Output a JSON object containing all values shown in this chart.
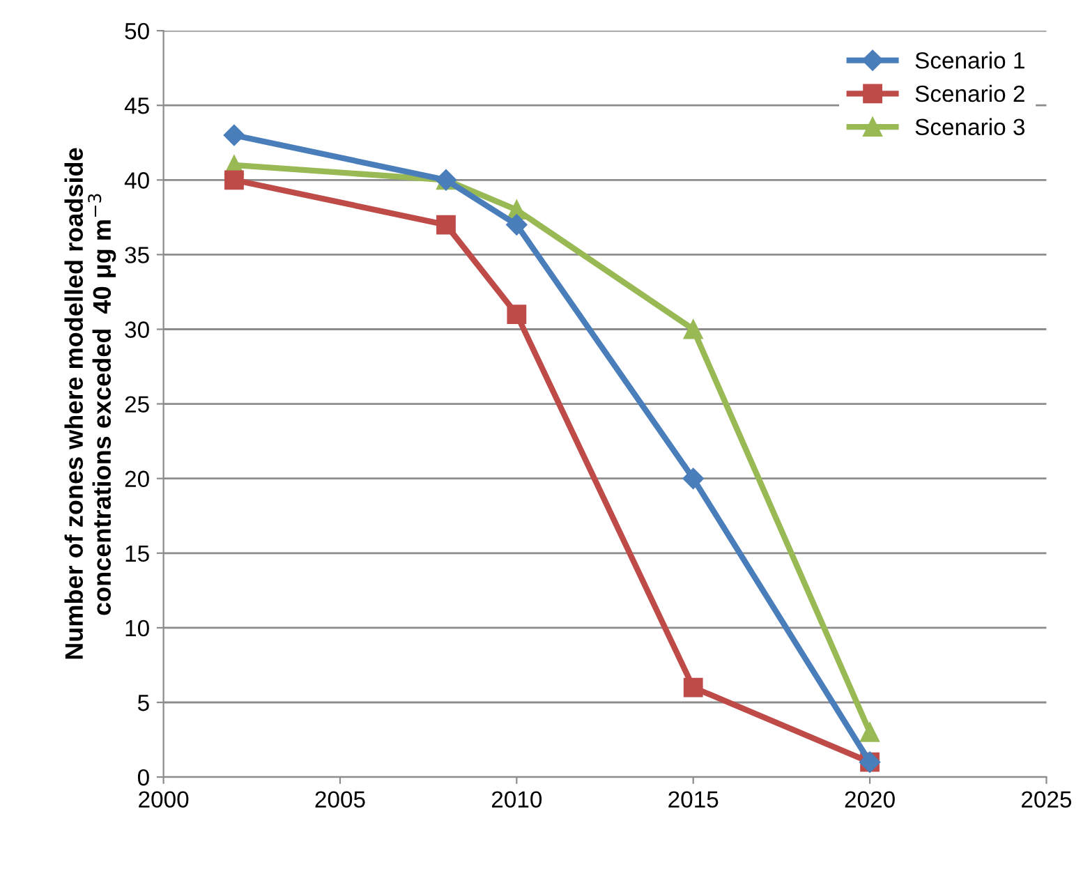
{
  "chart_data": {
    "type": "line",
    "ylabel": "Number of zones where modelled roadside\nconcentrations exceded  40 μg m$^{−3}$",
    "x": [
      2002,
      2008,
      2010,
      2015,
      2020
    ],
    "series": [
      {
        "name": "Scenario 1",
        "color": "#4a7ebb",
        "marker": "diamond",
        "values": [
          43,
          40,
          37,
          20,
          1
        ]
      },
      {
        "name": "Scenario 2",
        "color": "#be4b48",
        "marker": "square",
        "values": [
          40,
          37,
          31,
          6,
          1
        ]
      },
      {
        "name": "Scenario 3",
        "color": "#98b954",
        "marker": "triangle",
        "values": [
          41,
          40,
          38,
          30,
          3
        ]
      }
    ],
    "xlim": [
      2000,
      2025
    ],
    "xticks": [
      2000,
      2005,
      2010,
      2015,
      2020,
      2025
    ],
    "ylim": [
      0,
      50
    ],
    "yticks": [
      0,
      5,
      10,
      15,
      20,
      25,
      30,
      35,
      40,
      45,
      50
    ],
    "grid": "y",
    "legend": "top right",
    "line_style": "solid"
  }
}
